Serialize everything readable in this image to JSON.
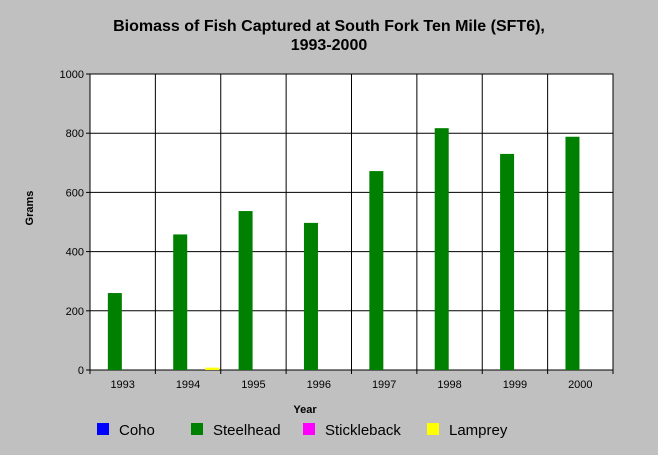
{
  "chart_data": {
    "type": "bar",
    "title": "Biomass of Fish Captured at South Fork Ten Mile (SFT6),",
    "subtitle": "1993-2000",
    "xlabel": "Year",
    "ylabel": "Grams",
    "ylim": [
      0,
      1000
    ],
    "yticks": [
      "0",
      "200",
      "400",
      "600",
      "800",
      "1000"
    ],
    "categories": [
      "1993",
      "1994",
      "1995",
      "1996",
      "1997",
      "1998",
      "1999",
      "2000"
    ],
    "grid": true,
    "legend_position": "bottom",
    "series": [
      {
        "name": "Coho",
        "color": "#0000ff",
        "values": [
          0,
          0,
          0,
          0,
          0,
          0,
          0,
          0
        ]
      },
      {
        "name": "Steelhead",
        "color": "#008000",
        "values": [
          260,
          458,
          537,
          497,
          672,
          817,
          730,
          788
        ]
      },
      {
        "name": "Stickleback",
        "color": "#ff00ff",
        "values": [
          0,
          0,
          0,
          0,
          0,
          0,
          0,
          0
        ]
      },
      {
        "name": "Lamprey",
        "color": "#ffff00",
        "values": [
          0,
          8,
          0,
          0,
          0,
          0,
          0,
          0
        ]
      }
    ]
  }
}
